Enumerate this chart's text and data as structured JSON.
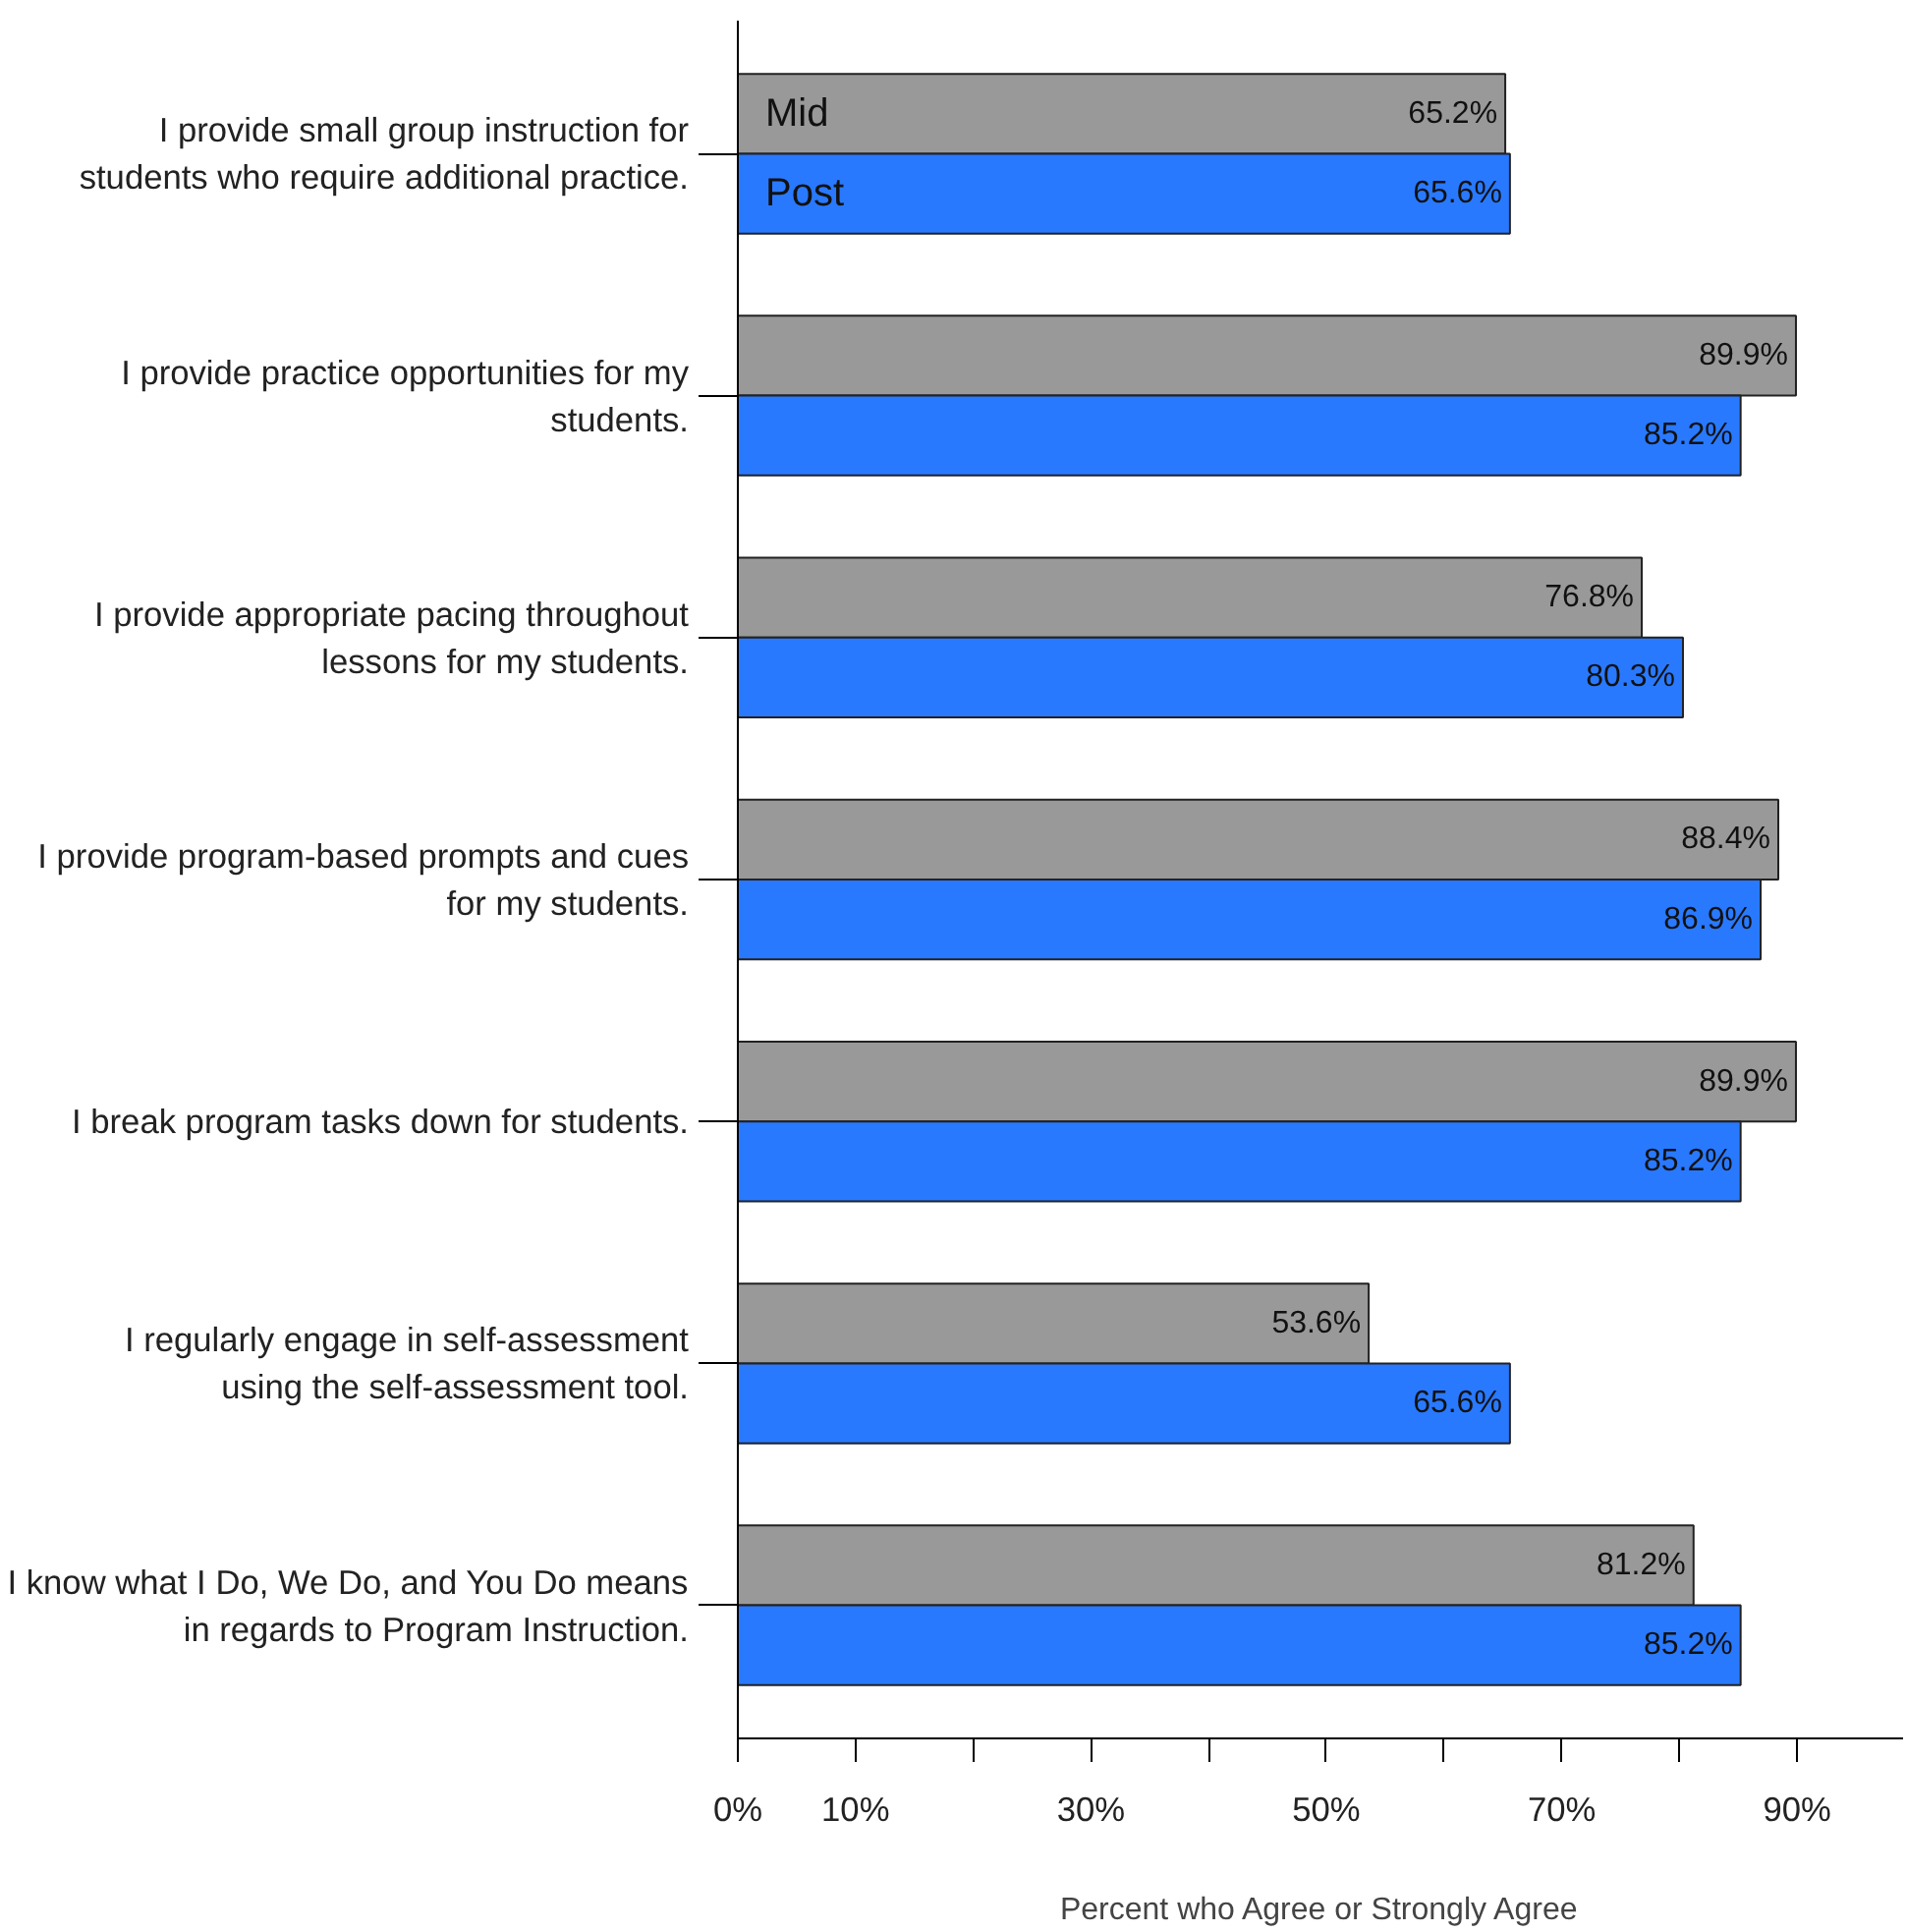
{
  "chart_data": {
    "type": "bar",
    "orientation": "horizontal",
    "xlabel": "Percent who Agree or Strongly Agree",
    "categories": [
      "I provide small group instruction for students who require additional practice.",
      "I provide practice opportunities for my students.",
      "I provide appropriate pacing throughout lessons for my students.",
      "I provide program-based prompts and cues for my students.",
      "I break program tasks down for students.",
      "I regularly engage in self-assessment using the self-assessment tool.",
      "I know what I Do, We Do, and You Do means in regards to Program Instruction."
    ],
    "series": [
      {
        "name": "Mid",
        "color": "#999999",
        "values": [
          65.2,
          89.9,
          76.8,
          88.4,
          89.9,
          53.6,
          81.2
        ],
        "value_labels": [
          "65.2%",
          "89.9%",
          "76.8%",
          "88.4%",
          "89.9%",
          "53.6%",
          "81.2%"
        ]
      },
      {
        "name": "Post",
        "color": "#2979ff",
        "values": [
          65.6,
          85.2,
          80.3,
          86.9,
          85.2,
          65.6,
          85.2
        ],
        "value_labels": [
          "65.6%",
          "85.2%",
          "80.3%",
          "86.9%",
          "85.2%",
          "65.6%",
          "85.2%"
        ]
      }
    ],
    "xlim": [
      0,
      99
    ],
    "xticks": [
      {
        "value": 0,
        "label": "0%"
      },
      {
        "value": 10,
        "label": "10%"
      },
      {
        "value": 20,
        "label": null
      },
      {
        "value": 30,
        "label": "30%"
      },
      {
        "value": 40,
        "label": null
      },
      {
        "value": 50,
        "label": "50%"
      },
      {
        "value": 60,
        "label": null
      },
      {
        "value": 70,
        "label": "70%"
      },
      {
        "value": 80,
        "label": null
      },
      {
        "value": 90,
        "label": "90%"
      }
    ],
    "grid": false
  }
}
